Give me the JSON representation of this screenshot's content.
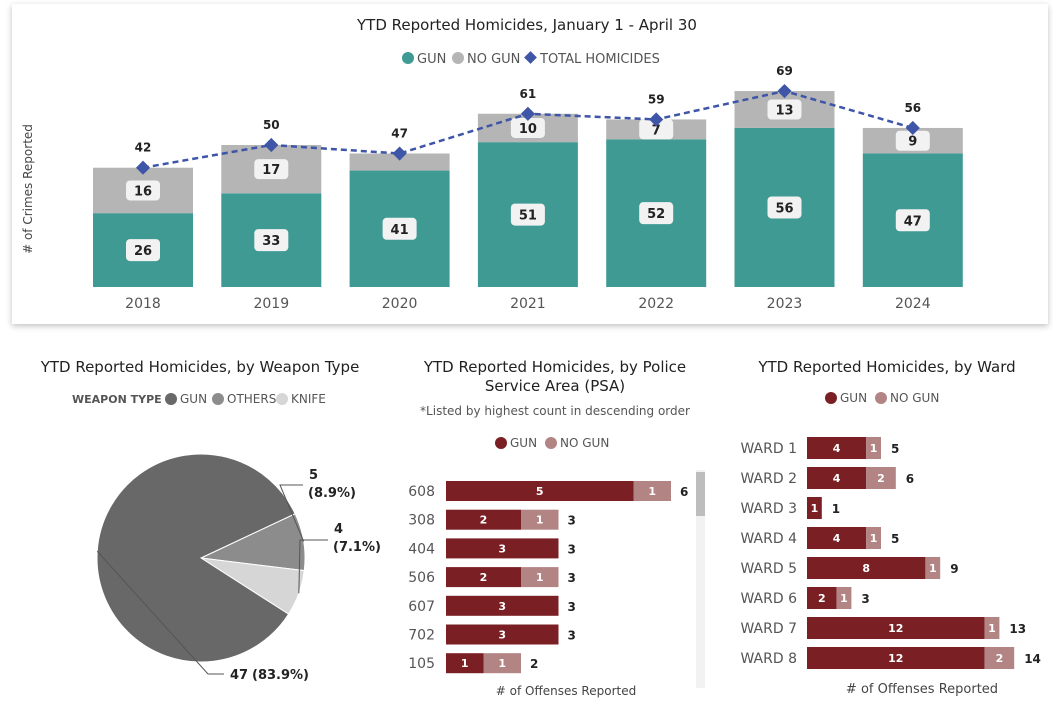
{
  "colors": {
    "gun_teal": "#3f9a94",
    "nogun_gray": "#b5b5b5",
    "total_blue": "#3e55a8",
    "pie_gun": "#686868",
    "pie_others": "#8c8c8c",
    "pie_knife": "#d6d6d6",
    "gun_maroon": "#7a2025",
    "nogun_rose": "#b38484"
  },
  "chart_data": [
    {
      "type": "bar",
      "stacked": true,
      "title": "YTD Reported Homicides, January 1 - April 30",
      "legend": [
        "GUN",
        "NO GUN",
        "TOTAL HOMICIDES"
      ],
      "ylabel": "# of Crimes Reported",
      "categories": [
        "2018",
        "2019",
        "2020",
        "2021",
        "2022",
        "2023",
        "2024"
      ],
      "series": [
        {
          "name": "GUN",
          "values": [
            26,
            33,
            41,
            51,
            52,
            56,
            47
          ],
          "labels": [
            "26",
            "33",
            "41",
            "51",
            "52",
            "56",
            "47"
          ]
        },
        {
          "name": "NO GUN",
          "values": [
            16,
            17,
            6,
            10,
            7,
            13,
            9
          ],
          "labels": [
            "16",
            "17",
            "",
            "10",
            "7",
            "13",
            "9"
          ]
        },
        {
          "name": "TOTAL HOMICIDES",
          "type": "line",
          "values": [
            42,
            50,
            47,
            61,
            59,
            69,
            56
          ],
          "labels": [
            "42",
            "50",
            "47",
            "61",
            "59",
            "69",
            "56"
          ]
        }
      ],
      "ylim": [
        0,
        75
      ]
    },
    {
      "type": "pie",
      "title": "YTD Reported Homicides, by Weapon Type",
      "legend_title": "WEAPON TYPE",
      "legend": [
        "GUN",
        "OTHERS",
        "KNIFE"
      ],
      "slices": [
        {
          "name": "GUN",
          "value": 47,
          "label_value": "47",
          "label_pct": "(83.9%)"
        },
        {
          "name": "OTHERS",
          "value": 5,
          "label_value": "5",
          "label_pct": "(8.9%)"
        },
        {
          "name": "KNIFE",
          "value": 4,
          "label_value": "4",
          "label_pct": "(7.1%)"
        }
      ]
    },
    {
      "type": "bar",
      "orientation": "horizontal",
      "stacked": true,
      "title_line1": "YTD Reported Homicides, by Police",
      "title_line2": "Service Area (PSA)",
      "subtitle": "*Listed by highest count in descending order",
      "legend": [
        "GUN",
        "NO GUN"
      ],
      "xlabel": "# of Offenses Reported",
      "categories": [
        "608",
        "308",
        "404",
        "506",
        "607",
        "702",
        "105"
      ],
      "series": [
        {
          "name": "GUN",
          "values": [
            5,
            2,
            3,
            2,
            3,
            3,
            1
          ],
          "labels": [
            "5",
            "2",
            "3",
            "2",
            "3",
            "3",
            "1"
          ]
        },
        {
          "name": "NO GUN",
          "values": [
            1,
            1,
            0,
            1,
            0,
            0,
            1
          ],
          "labels": [
            "1",
            "1",
            "",
            "1",
            "",
            "",
            "1"
          ]
        }
      ],
      "totals": [
        "6",
        "3",
        "3",
        "3",
        "3",
        "3",
        "2"
      ],
      "xlim": [
        0,
        6.5
      ]
    },
    {
      "type": "bar",
      "orientation": "horizontal",
      "stacked": true,
      "title": "YTD Reported Homicides, by Ward",
      "legend": [
        "GUN",
        "NO GUN"
      ],
      "xlabel": "# of Offenses Reported",
      "categories": [
        "WARD 1",
        "WARD 2",
        "WARD 3",
        "WARD 4",
        "WARD 5",
        "WARD 6",
        "WARD 7",
        "WARD 8"
      ],
      "series": [
        {
          "name": "GUN",
          "values": [
            4,
            4,
            1,
            4,
            8,
            2,
            12,
            12
          ],
          "labels": [
            "4",
            "4",
            "1",
            "4",
            "8",
            "2",
            "12",
            "12"
          ]
        },
        {
          "name": "NO GUN",
          "values": [
            1,
            2,
            0,
            1,
            1,
            1,
            1,
            2
          ],
          "labels": [
            "1",
            "2",
            "",
            "1",
            "1",
            "1",
            "1",
            "2"
          ]
        }
      ],
      "totals": [
        "5",
        "6",
        "1",
        "5",
        "9",
        "3",
        "13",
        "14"
      ],
      "xlim": [
        0,
        14
      ]
    }
  ]
}
